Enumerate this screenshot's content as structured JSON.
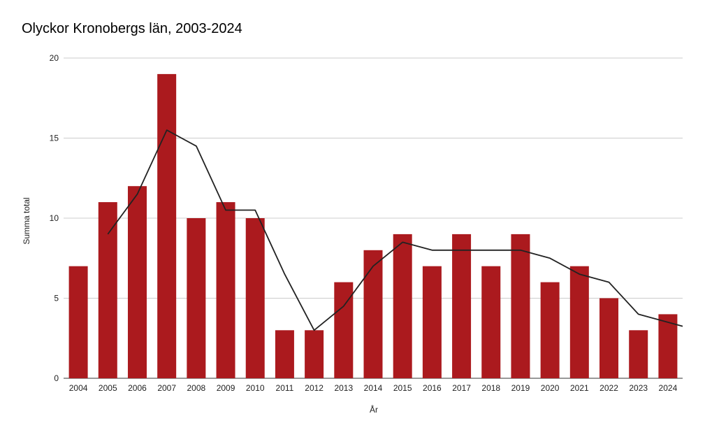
{
  "chart_data": {
    "type": "bar",
    "title": "Olyckor Kronobergs län, 2003-2024",
    "xlabel": "År",
    "ylabel": "Summa total",
    "ylim": [
      0,
      20
    ],
    "yticks": [
      "0",
      "5",
      "10",
      "15",
      "20"
    ],
    "grid": true,
    "categories": [
      "2004",
      "2005",
      "2006",
      "2007",
      "2008",
      "2009",
      "2010",
      "2011",
      "2012",
      "2013",
      "2014",
      "2015",
      "2016",
      "2017",
      "2018",
      "2019",
      "2020",
      "2021",
      "2022",
      "2023",
      "2024"
    ],
    "series": [
      {
        "type": "bar",
        "color": "#ab1a1e",
        "values": [
          7,
          11,
          12,
          19,
          10,
          11,
          10,
          3,
          3,
          6,
          8,
          9,
          7,
          9,
          7,
          9,
          6,
          7,
          5,
          3,
          4
        ]
      },
      {
        "type": "line",
        "color": "#222222",
        "values": [
          null,
          9,
          11.5,
          15.5,
          14.5,
          10.5,
          10.5,
          6.5,
          3,
          4.5,
          7,
          8.5,
          8,
          8,
          8,
          8,
          7.5,
          6.5,
          6,
          4,
          3.5
        ]
      }
    ]
  }
}
